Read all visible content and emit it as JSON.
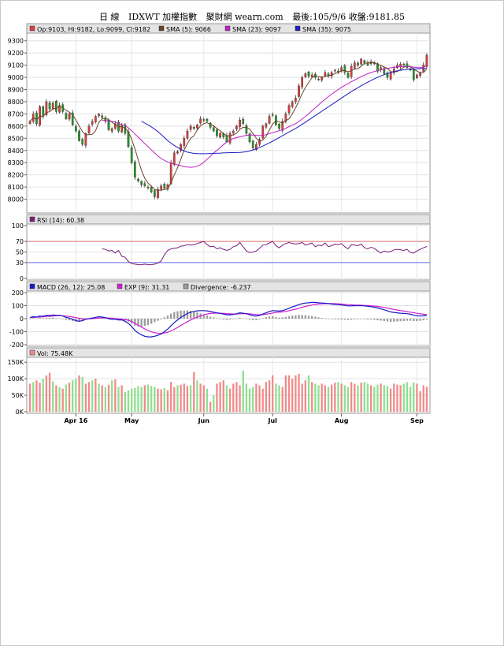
{
  "header": {
    "daily": "日 線",
    "index": "IDXWT 加權指數",
    "source": "聚財網 wearn.com",
    "last": "最後:105/9/6 收盤:9181.85"
  },
  "legend": {
    "ohlc": "Op:9103, Hi:9182, Lo:9099, Cl:9182",
    "sma5": "SMA (5): 9066",
    "sma23": "SMA (23): 9097",
    "sma35": "SMA (35): 9075",
    "rsi": "RSI (14): 60.38",
    "macd": "MACD (26, 12): 25.08",
    "exp": "EXP (9): 31.31",
    "div": "Divergence: -6.237",
    "vol": "Vol: 75.48K"
  },
  "colors": {
    "up": "#e03c3c",
    "down": "#1e9c1e",
    "sma5": "#6b4226",
    "sma23": "#c020c0",
    "sma35": "#1c1cc0",
    "rsi": "#7a1e7a",
    "rsi70": "#e07070",
    "rsi30": "#6a6ae8",
    "macd": "#1818c8",
    "exp": "#d020d0",
    "div": "#9a9a9a",
    "vol_up": "#f08a8a",
    "vol_down": "#8ee08e"
  },
  "chart_data": [
    {
      "type": "candlestick",
      "name": "IDXWT",
      "ylim": [
        7900,
        9350
      ],
      "yticks": [
        8000,
        8100,
        8200,
        8300,
        8400,
        8500,
        8600,
        8700,
        8800,
        8900,
        9000,
        9100,
        9200,
        9300
      ],
      "x_labels": [
        {
          "label": "Apr 16",
          "index": 14
        },
        {
          "label": "May",
          "index": 31
        },
        {
          "label": "Jun",
          "index": 53
        },
        {
          "label": "Jul",
          "index": 74
        },
        {
          "label": "Aug",
          "index": 95
        },
        {
          "label": "Sep",
          "index": 118
        }
      ],
      "close": [
        8640,
        8700,
        8620,
        8760,
        8680,
        8800,
        8740,
        8790,
        8720,
        8770,
        8720,
        8660,
        8700,
        8610,
        8560,
        8480,
        8450,
        8540,
        8600,
        8640,
        8680,
        8700,
        8670,
        8640,
        8570,
        8580,
        8620,
        8560,
        8610,
        8540,
        8430,
        8300,
        8180,
        8150,
        8120,
        8110,
        8100,
        8060,
        8020,
        8080,
        8110,
        8090,
        8120,
        8300,
        8380,
        8390,
        8450,
        8500,
        8560,
        8600,
        8580,
        8610,
        8660,
        8650,
        8640,
        8590,
        8560,
        8520,
        8540,
        8510,
        8470,
        8540,
        8560,
        8600,
        8650,
        8620,
        8540,
        8470,
        8420,
        8450,
        8490,
        8600,
        8620,
        8680,
        8690,
        8610,
        8580,
        8640,
        8700,
        8770,
        8800,
        8830,
        8930,
        9000,
        9030,
        9010,
        9020,
        9000,
        8980,
        9000,
        9040,
        9010,
        9040,
        9060,
        9050,
        9080,
        9040,
        9000,
        9090,
        9120,
        9100,
        9150,
        9120,
        9100,
        9130,
        9110,
        9050,
        9080,
        9030,
        9000,
        9040,
        9070,
        9100,
        9110,
        9100,
        9080,
        9060,
        8980,
        9020,
        9040,
        9103,
        9182
      ],
      "sma5": [
        8640,
        8670,
        8653,
        8680,
        8680,
        8712,
        8718,
        8742,
        8746,
        8764,
        8748,
        8732,
        8714,
        8692,
        8650,
        8602,
        8556,
        8528,
        8530,
        8534,
        8562,
        8632,
        8658,
        8667,
        8652,
        8632,
        8616,
        8594,
        8596,
        8582,
        8552,
        8492,
        8414,
        8324,
        8236,
        8172,
        8132,
        8108,
        8080,
        8074,
        8074,
        8080,
        8084,
        8134,
        8200,
        8258,
        8328,
        8404,
        8456,
        8500,
        8520,
        8568,
        8602,
        8620,
        8628,
        8616,
        8602,
        8580,
        8562,
        8536,
        8522,
        8518,
        8530,
        8540,
        8574,
        8590,
        8590,
        8576,
        8538,
        8500,
        8474,
        8486,
        8516,
        8566,
        8618,
        8640,
        8636,
        8624,
        8644,
        8660,
        8700,
        8750,
        8806,
        8866,
        8918,
        8958,
        8998,
        9012,
        9006,
        9002,
        9008,
        9014,
        9018,
        9030,
        9040,
        9054,
        9056,
        9046,
        9054,
        9068,
        9070,
        9092,
        9116,
        9118,
        9120,
        9122,
        9106,
        9098,
        9084,
        9074,
        9046,
        9046,
        9048,
        9064,
        9084,
        9092,
        9090,
        9066,
        9052,
        9036,
        9041,
        9066
      ],
      "sma23": [
        null,
        null,
        null,
        null,
        null,
        null,
        null,
        null,
        null,
        null,
        null,
        null,
        null,
        null,
        null,
        null,
        null,
        null,
        null,
        null,
        null,
        null,
        8648,
        8645,
        8642,
        8638,
        8634,
        8622,
        8612,
        8604,
        8586,
        8562,
        8536,
        8509,
        8483,
        8456,
        8432,
        8406,
        8380,
        8356,
        8334,
        8318,
        8306,
        8298,
        8290,
        8282,
        8275,
        8268,
        8264,
        8262,
        8264,
        8270,
        8284,
        8304,
        8328,
        8352,
        8380,
        8400,
        8424,
        8448,
        8468,
        8486,
        8498,
        8506,
        8512,
        8518,
        8524,
        8526,
        8526,
        8524,
        8522,
        8524,
        8530,
        8538,
        8546,
        8554,
        8562,
        8570,
        8582,
        8596,
        8608,
        8620,
        8638,
        8658,
        8680,
        8702,
        8726,
        8750,
        8774,
        8798,
        8820,
        8842,
        8862,
        8882,
        8900,
        8918,
        8934,
        8948,
        8964,
        8978,
        8992,
        9006,
        9018,
        9030,
        9040,
        9048,
        9054,
        9062,
        9068,
        9074,
        9078,
        9082,
        9086,
        9088,
        9090,
        9090,
        9088,
        9084,
        9080,
        9080,
        9083,
        9097
      ],
      "sma35": [
        null,
        null,
        null,
        null,
        null,
        null,
        null,
        null,
        null,
        null,
        null,
        null,
        null,
        null,
        null,
        null,
        null,
        null,
        null,
        null,
        null,
        null,
        null,
        null,
        null,
        null,
        null,
        null,
        null,
        null,
        null,
        null,
        null,
        null,
        8640,
        8625,
        8610,
        8594,
        8576,
        8555,
        8531,
        8506,
        8480,
        8460,
        8441,
        8425,
        8410,
        8396,
        8386,
        8380,
        8376,
        8374,
        8373,
        8373,
        8374,
        8375,
        8376,
        8377,
        8378,
        8380,
        8381,
        8382,
        8382,
        8383,
        8384,
        8386,
        8390,
        8396,
        8404,
        8413,
        8424,
        8436,
        8449,
        8462,
        8476,
        8491,
        8506,
        8521,
        8536,
        8551,
        8566,
        8581,
        8597,
        8614,
        8632,
        8650,
        8668,
        8686,
        8704,
        8722,
        8740,
        8758,
        8776,
        8794,
        8812,
        8830,
        8848,
        8866,
        8883,
        8899,
        8915,
        8931,
        8946,
        8960,
        8974,
        8988,
        9000,
        9012,
        9022,
        9032,
        9040,
        9047,
        9053,
        9058,
        9062,
        9066,
        9068,
        9069,
        9070,
        9071,
        9072,
        9075
      ]
    },
    {
      "type": "line",
      "name": "RSI (14)",
      "ylim": [
        0,
        100
      ],
      "yticks": [
        0,
        30,
        50,
        70,
        100
      ],
      "ref_lines": [
        70,
        30
      ],
      "values": [
        null,
        null,
        null,
        null,
        null,
        null,
        null,
        null,
        null,
        null,
        null,
        null,
        null,
        null,
        null,
        null,
        null,
        null,
        null,
        null,
        null,
        null,
        56,
        55,
        52,
        53,
        48,
        53,
        42,
        40,
        32,
        28,
        27,
        26,
        26,
        27,
        26,
        26,
        27,
        29,
        33,
        45,
        53,
        56,
        57,
        58,
        61,
        62,
        64,
        63,
        64,
        66,
        68,
        70,
        64,
        60,
        61,
        56,
        58,
        55,
        53,
        55,
        60,
        62,
        68,
        60,
        52,
        49,
        50,
        52,
        57,
        63,
        64,
        67,
        70,
        62,
        58,
        63,
        66,
        68,
        66,
        65,
        66,
        68,
        63,
        65,
        67,
        60,
        63,
        62,
        67,
        60,
        62,
        65,
        64,
        66,
        60,
        56,
        64,
        63,
        62,
        65,
        58,
        56,
        59,
        57,
        52,
        48,
        52,
        50,
        51,
        54,
        55,
        54,
        53,
        55,
        49,
        48,
        52,
        55,
        58,
        60.38
      ]
    },
    {
      "type": "line",
      "name": "MACD (26, 12)",
      "ylim": [
        -200,
        200
      ],
      "yticks": [
        -200,
        -100,
        0,
        100,
        200
      ],
      "series": [
        {
          "name": "MACD (26, 12)",
          "values": [
            10,
            15,
            12,
            20,
            18,
            25,
            24,
            28,
            25,
            26,
            20,
            10,
            5,
            -5,
            -15,
            -20,
            -15,
            -5,
            0,
            5,
            10,
            15,
            12,
            8,
            0,
            -5,
            -5,
            -10,
            -10,
            -20,
            -35,
            -60,
            -90,
            -110,
            -125,
            -135,
            -140,
            -140,
            -135,
            -128,
            -118,
            -100,
            -80,
            -55,
            -30,
            -10,
            10,
            25,
            40,
            50,
            55,
            60,
            62,
            62,
            60,
            55,
            50,
            45,
            40,
            35,
            30,
            30,
            32,
            38,
            45,
            42,
            38,
            30,
            22,
            20,
            25,
            35,
            45,
            55,
            62,
            60,
            58,
            62,
            70,
            80,
            90,
            98,
            108,
            115,
            120,
            122,
            125,
            124,
            122,
            120,
            118,
            116,
            112,
            110,
            108,
            105,
            102,
            98,
            98,
            100,
            100,
            100,
            98,
            95,
            92,
            88,
            82,
            75,
            68,
            60,
            52,
            48,
            45,
            42,
            40,
            38,
            34,
            28,
            22,
            20,
            22,
            25.08
          ]
        },
        {
          "name": "EXP (9)",
          "values": [
            8,
            10,
            11,
            13,
            14,
            17,
            18,
            20,
            22,
            23,
            22,
            20,
            17,
            13,
            8,
            3,
            0,
            -1,
            -1,
            0,
            2,
            5,
            6,
            6,
            5,
            3,
            1,
            -1,
            -3,
            -6,
            -12,
            -22,
            -36,
            -50,
            -65,
            -79,
            -91,
            -101,
            -108,
            -112,
            -113,
            -110,
            -104,
            -94,
            -82,
            -67,
            -52,
            -37,
            -23,
            -10,
            1,
            12,
            22,
            30,
            36,
            40,
            42,
            43,
            42,
            41,
            39,
            37,
            36,
            36,
            38,
            39,
            39,
            37,
            34,
            31,
            30,
            31,
            34,
            38,
            43,
            47,
            50,
            52,
            56,
            61,
            67,
            73,
            80,
            87,
            94,
            100,
            105,
            109,
            112,
            114,
            115,
            116,
            116,
            115,
            114,
            112,
            110,
            108,
            106,
            105,
            104,
            103,
            102,
            101,
            99,
            97,
            94,
            90,
            86,
            81,
            76,
            71,
            66,
            62,
            58,
            54,
            50,
            46,
            41,
            37,
            34,
            31.31
          ]
        },
        {
          "name": "Divergence",
          "values": [
            2,
            5,
            1,
            7,
            4,
            8,
            6,
            8,
            3,
            3,
            -2,
            -10,
            -12,
            -18,
            -23,
            -23,
            -15,
            -4,
            1,
            5,
            8,
            10,
            6,
            2,
            -5,
            -8,
            -6,
            -9,
            -7,
            -14,
            -23,
            -38,
            -54,
            -60,
            -60,
            -56,
            -49,
            -39,
            -27,
            -16,
            -5,
            10,
            24,
            39,
            52,
            57,
            62,
            62,
            63,
            60,
            54,
            48,
            40,
            32,
            24,
            15,
            8,
            2,
            -2,
            -6,
            -9,
            -7,
            -4,
            2,
            7,
            3,
            -1,
            -7,
            -12,
            -11,
            -5,
            4,
            11,
            17,
            19,
            13,
            8,
            10,
            14,
            19,
            23,
            25,
            28,
            28,
            26,
            22,
            20,
            15,
            10,
            6,
            3,
            0,
            -4,
            -5,
            -6,
            -7,
            -8,
            -10,
            -8,
            -5,
            -4,
            -3,
            -4,
            -6,
            -7,
            -9,
            -12,
            -15,
            -18,
            -21,
            -24,
            -23,
            -21,
            -20,
            -18,
            -16,
            -16,
            -18,
            -19,
            -17,
            -12,
            -6.237
          ]
        }
      ]
    },
    {
      "type": "bar",
      "name": "Vol",
      "ylim": [
        0,
        160
      ],
      "yticks": [
        0,
        50,
        100,
        150
      ],
      "ytick_labels": [
        "0K",
        "50K",
        "100K",
        "150K"
      ],
      "values": [
        85,
        90,
        95,
        88,
        100,
        110,
        118,
        92,
        80,
        75,
        70,
        82,
        88,
        95,
        100,
        110,
        105,
        85,
        90,
        95,
        100,
        85,
        80,
        75,
        82,
        95,
        98,
        75,
        80,
        60,
        65,
        70,
        72,
        78,
        75,
        80,
        82,
        78,
        75,
        70,
        68,
        72,
        65,
        90,
        75,
        80,
        82,
        85,
        78,
        80,
        120,
        95,
        85,
        80,
        70,
        30,
        50,
        85,
        90,
        95,
        80,
        70,
        85,
        90,
        80,
        125,
        85,
        70,
        75,
        85,
        80,
        70,
        90,
        95,
        110,
        85,
        80,
        75,
        110,
        110,
        100,
        110,
        115,
        85,
        95,
        110,
        90,
        85,
        80,
        85,
        80,
        75,
        82,
        88,
        90,
        85,
        80,
        75,
        90,
        85,
        80,
        88,
        90,
        85,
        80,
        75,
        82,
        85,
        80,
        78,
        70,
        85,
        82,
        80,
        85,
        90,
        75,
        88,
        85,
        62,
        80,
        75.48
      ],
      "up": [
        1,
        0,
        1,
        1,
        0,
        1,
        1,
        0,
        1,
        0,
        1,
        0,
        1,
        0,
        0,
        1,
        0,
        1,
        1,
        0,
        1,
        0,
        1,
        0,
        1,
        0,
        1,
        0,
        1,
        0,
        0,
        0,
        0,
        0,
        0,
        1,
        0,
        0,
        0,
        1,
        1,
        0,
        1,
        1,
        1,
        0,
        1,
        1,
        1,
        0,
        1,
        0,
        1,
        1,
        0,
        1,
        0,
        1,
        1,
        1,
        0,
        1,
        1,
        1,
        1,
        0,
        0,
        0,
        0,
        1,
        1,
        1,
        1,
        1,
        1,
        0,
        0,
        1,
        1,
        1,
        1,
        1,
        1,
        1,
        1,
        0,
        1,
        0,
        0,
        1,
        1,
        0,
        1,
        1,
        0,
        1,
        0,
        0,
        1,
        1,
        0,
        1,
        0,
        0,
        1,
        0,
        0,
        1,
        0,
        0,
        1,
        1,
        1,
        1,
        0,
        0,
        0,
        0,
        1,
        1,
        1,
        1
      ]
    }
  ]
}
